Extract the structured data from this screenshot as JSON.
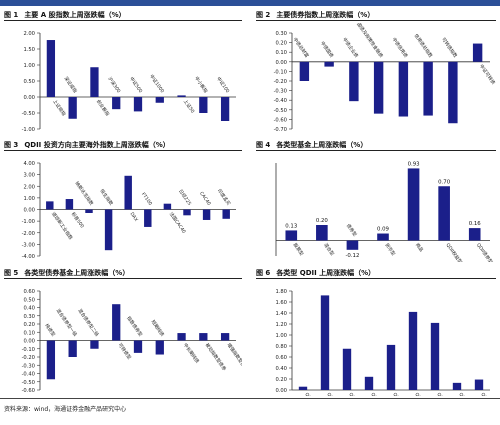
{
  "bar_color": "#1b1f8a",
  "top_band_color": "#2b4f98",
  "source_text": "资料来源：wind，海通证券金融产品研究中心",
  "chart_data": [
    {
      "id": "fig1",
      "figure_no": "图 1",
      "title": "主要 A 股指数上周涨跌幅（%）",
      "type": "bar",
      "categories": [
        "上证综指",
        "深证成指",
        "创业板指",
        "沪深300",
        "中证500",
        "中证1000",
        "上证50",
        "中小板指",
        "中证100"
      ],
      "values": [
        1.78,
        -0.68,
        0.93,
        -0.38,
        -0.45,
        -0.18,
        0.05,
        -0.5,
        -0.75
      ],
      "ylim": [
        -1.0,
        2.0
      ],
      "yticks": [
        -1.0,
        -0.5,
        0.0,
        0.5,
        1.0,
        1.5,
        2.0
      ],
      "decimals": 2,
      "grid": false,
      "labels_on_bars": false
    },
    {
      "id": "fig2",
      "figure_no": "图 2",
      "title": "主要债券指数上周涨跌幅（%）",
      "type": "bar",
      "categories": [
        "中债总财富",
        "中债国债",
        "中债企业债",
        "国债及政策性金融债",
        "中债信用债",
        "信用债总指数",
        "可转债指数",
        "中证可转债"
      ],
      "values": [
        -0.2,
        -0.05,
        -0.41,
        -0.54,
        -0.57,
        -0.56,
        -0.64,
        0.19
      ],
      "ylim": [
        -0.7,
        0.3
      ],
      "yticks": [
        -0.7,
        -0.6,
        -0.5,
        -0.4,
        -0.3,
        -0.2,
        -0.1,
        0.0,
        0.1,
        0.2,
        0.3
      ],
      "decimals": 2,
      "grid": false,
      "labels_on_bars": false
    },
    {
      "id": "fig3",
      "figure_no": "图 3",
      "title": "QDII 投资方向主要海外指数上周涨跌幅（%）",
      "type": "bar",
      "categories": [
        "道琼斯工业指数",
        "标普500",
        "纳斯达克指数",
        "恒生指数",
        "DAX",
        "FT100",
        "法国CAC40",
        "日经225",
        "CAC40",
        "印度孟买"
      ],
      "values": [
        0.7,
        0.9,
        -0.3,
        -3.5,
        2.9,
        -1.5,
        0.5,
        -0.5,
        -0.9,
        -0.8
      ],
      "ylim": [
        -4.0,
        4.0
      ],
      "yticks": [
        -4.0,
        -3.0,
        -2.0,
        -1.0,
        0.0,
        1.0,
        2.0,
        3.0,
        4.0
      ],
      "decimals": 2,
      "grid": false,
      "labels_on_bars": false
    },
    {
      "id": "fig4",
      "figure_no": "图 4",
      "title": "各类型基金上周涨跌幅（%）",
      "type": "bar",
      "categories": [
        "股票型",
        "混合型",
        "债券型",
        "货币型",
        "商品",
        "QDII权益型",
        "QDII债券型"
      ],
      "values": [
        0.13,
        0.2,
        -0.12,
        0.09,
        0.93,
        0.7,
        0.16
      ],
      "ylim": [
        -0.2,
        1.0
      ],
      "yticks": [],
      "decimals": 2,
      "grid": false,
      "labels_on_bars": true
    },
    {
      "id": "fig5",
      "figure_no": "图 5",
      "title": "各类型债券基金上周涨跌幅（%）",
      "type": "bar",
      "categories": [
        "纯债型",
        "混合债券型一级",
        "混合债券型二级",
        "可转债型",
        "指数债券型",
        "短期纯债",
        "中长期纯债",
        "被动指数型债券",
        "增强指数型债券"
      ],
      "values": [
        -0.47,
        -0.2,
        -0.1,
        0.44,
        -0.15,
        -0.17,
        0.09,
        0.09,
        0.09
      ],
      "ylim": [
        -0.6,
        0.6
      ],
      "yticks": [
        -0.6,
        -0.5,
        -0.4,
        -0.3,
        -0.2,
        -0.1,
        0.0,
        0.1,
        0.2,
        0.3,
        0.4,
        0.5,
        0.6
      ],
      "decimals": 2,
      "grid": false,
      "labels_on_bars": false
    },
    {
      "id": "fig6",
      "figure_no": "图 6",
      "title": "各类型 QDII 上周涨跌幅（%）",
      "type": "bar",
      "categories": [
        "QDII股票型",
        "QDII混合偏股型",
        "QDII混合灵活配置型",
        "QDII另类投资",
        "QDII债券型",
        "QDII商品型",
        "QDII指数型",
        "QDII混合偏债型",
        "QDII另类型"
      ],
      "values": [
        0.06,
        1.72,
        0.75,
        0.24,
        0.82,
        1.42,
        1.22,
        0.13,
        0.19
      ],
      "ylim": [
        0.0,
        1.8
      ],
      "yticks": [
        0.0,
        0.2,
        0.4,
        0.6,
        0.8,
        1.0,
        1.2,
        1.4,
        1.6,
        1.8
      ],
      "decimals": 2,
      "grid": false,
      "labels_on_bars": false
    }
  ]
}
